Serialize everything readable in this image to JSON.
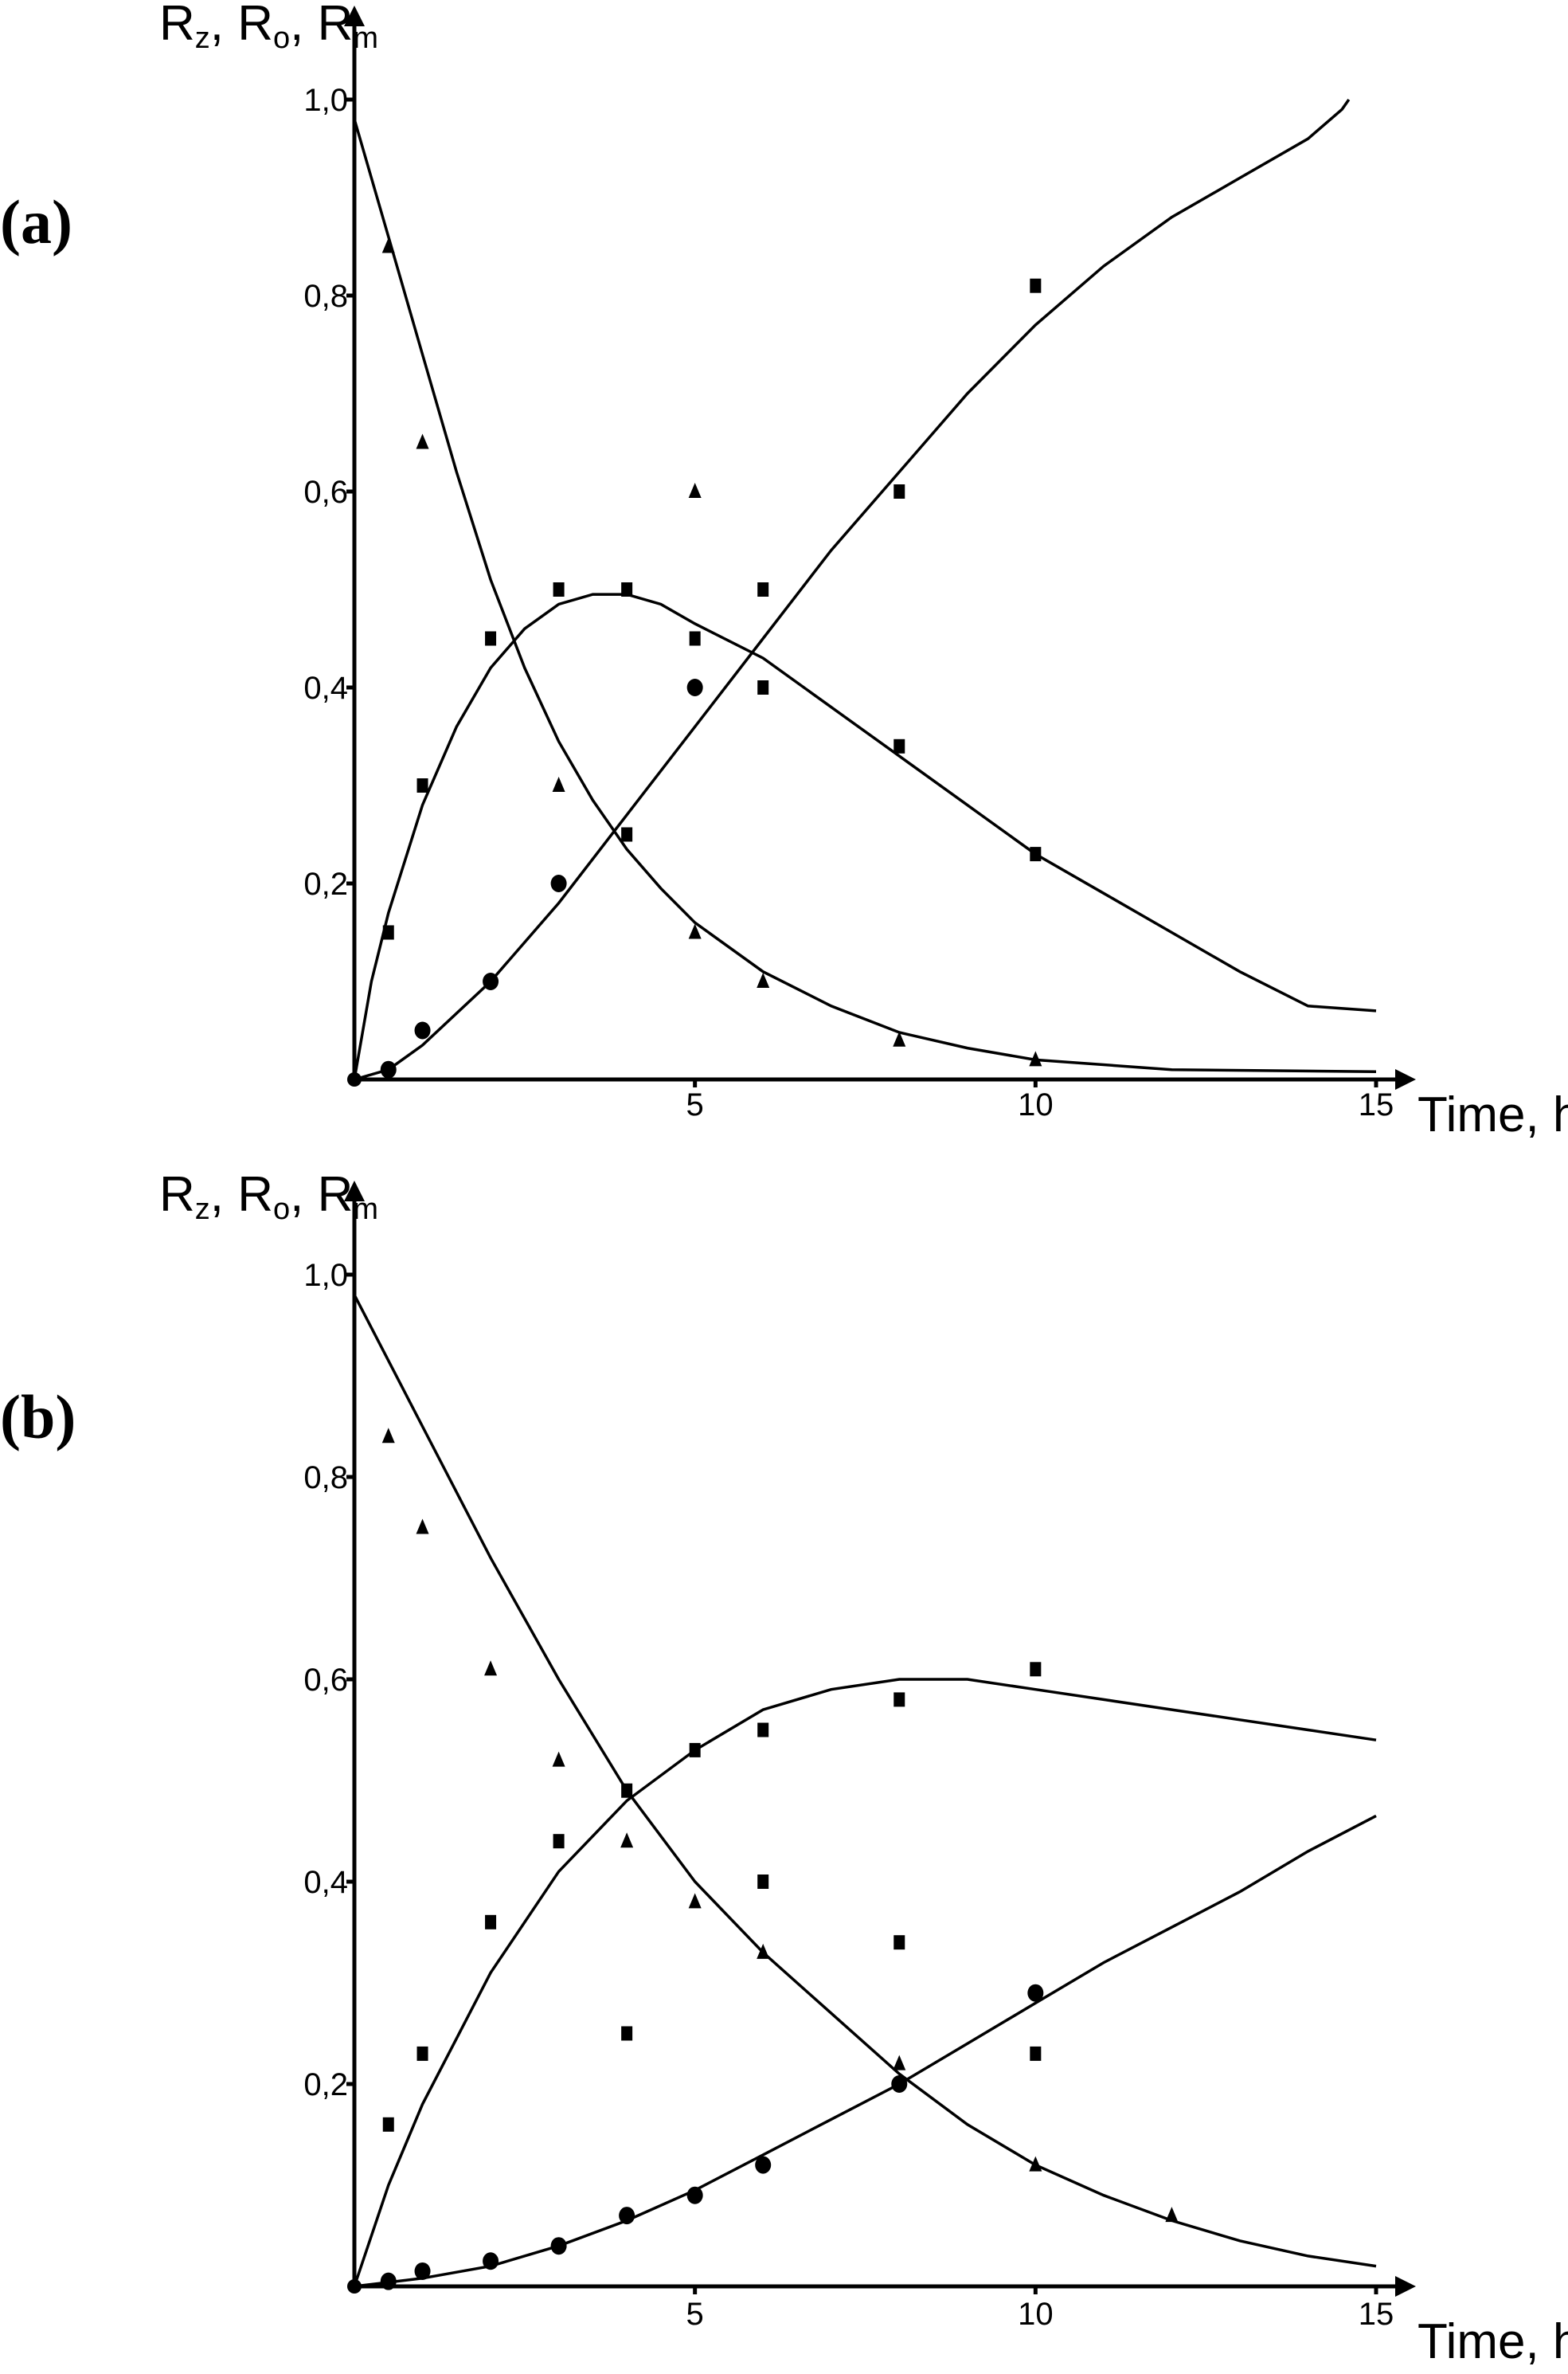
{
  "chart_data": [
    {
      "panel": "(a)",
      "type": "scatter",
      "y_axis_title": {
        "parts": [
          [
            "R",
            "z"
          ],
          [
            "R",
            "o"
          ],
          [
            "R",
            "m"
          ]
        ],
        "separator": ", "
      },
      "x_axis_title": "Time, h",
      "xlim": [
        0,
        15
      ],
      "ylim": [
        0,
        1.0
      ],
      "x_ticks": [
        5,
        10,
        15
      ],
      "y_ticks": [
        {
          "value": 0.2,
          "label": "0,2"
        },
        {
          "value": 0.4,
          "label": "0,4"
        },
        {
          "value": 0.6,
          "label": "0,6"
        },
        {
          "value": 0.8,
          "label": "0,8"
        },
        {
          "value": 1.0,
          "label": "1,0"
        }
      ],
      "grid": false,
      "series": [
        {
          "marker": "triangle",
          "points": [
            [
              0.5,
              0.85
            ],
            [
              1,
              0.65
            ],
            [
              3,
              0.3
            ],
            [
              5,
              0.6
            ],
            [
              5,
              0.15
            ],
            [
              6,
              0.1
            ],
            [
              8,
              0.04
            ],
            [
              10,
              0.02
            ]
          ],
          "fit": [
            [
              0,
              0.98
            ],
            [
              0.5,
              0.86
            ],
            [
              1,
              0.74
            ],
            [
              1.5,
              0.62
            ],
            [
              2,
              0.51
            ],
            [
              2.5,
              0.42
            ],
            [
              3,
              0.345
            ],
            [
              3.5,
              0.285
            ],
            [
              4,
              0.235
            ],
            [
              4.5,
              0.195
            ],
            [
              5,
              0.16
            ],
            [
              6,
              0.11
            ],
            [
              7,
              0.075
            ],
            [
              8,
              0.048
            ],
            [
              9,
              0.032
            ],
            [
              10,
              0.02
            ],
            [
              12,
              0.01
            ],
            [
              15,
              0.008
            ]
          ]
        },
        {
          "marker": "square",
          "points": [
            [
              0.5,
              0.15
            ],
            [
              1,
              0.3
            ],
            [
              2,
              0.45
            ],
            [
              3,
              0.5
            ],
            [
              4,
              0.5
            ],
            [
              5,
              0.45
            ],
            [
              6,
              0.5
            ],
            [
              6,
              0.4
            ],
            [
              8,
              0.34
            ],
            [
              10,
              0.23
            ],
            [
              4,
              0.25
            ],
            [
              8,
              0.6
            ],
            [
              10,
              0.81
            ]
          ],
          "fit": [
            [
              0,
              0.0
            ],
            [
              0.25,
              0.1
            ],
            [
              0.5,
              0.17
            ],
            [
              1,
              0.28
            ],
            [
              1.5,
              0.36
            ],
            [
              2,
              0.42
            ],
            [
              2.5,
              0.46
            ],
            [
              3,
              0.485
            ],
            [
              3.5,
              0.495
            ],
            [
              4,
              0.495
            ],
            [
              4.5,
              0.485
            ],
            [
              5,
              0.465
            ],
            [
              6,
              0.43
            ],
            [
              7,
              0.38
            ],
            [
              8,
              0.33
            ],
            [
              9,
              0.28
            ],
            [
              10,
              0.23
            ],
            [
              11,
              0.19
            ],
            [
              12,
              0.15
            ],
            [
              13,
              0.11
            ],
            [
              14,
              0.075
            ],
            [
              15,
              0.07
            ]
          ]
        },
        {
          "marker": "circle",
          "points": [
            [
              0.5,
              0.01
            ],
            [
              1,
              0.05
            ],
            [
              2,
              0.1
            ],
            [
              3,
              0.2
            ],
            [
              5,
              0.4
            ]
          ],
          "fit": [
            [
              0,
              0.0
            ],
            [
              0.5,
              0.01
            ],
            [
              1,
              0.035
            ],
            [
              2,
              0.1
            ],
            [
              3,
              0.18
            ],
            [
              4,
              0.27
            ],
            [
              5,
              0.36
            ],
            [
              6,
              0.45
            ],
            [
              7,
              0.54
            ],
            [
              8,
              0.62
            ],
            [
              9,
              0.7
            ],
            [
              10,
              0.77
            ],
            [
              11,
              0.83
            ],
            [
              12,
              0.88
            ],
            [
              13,
              0.92
            ],
            [
              14,
              0.96
            ],
            [
              14.5,
              0.99
            ],
            [
              14.6,
              1.0
            ]
          ]
        }
      ]
    },
    {
      "panel": "(b)",
      "type": "scatter",
      "y_axis_title": {
        "parts": [
          [
            "R",
            "z"
          ],
          [
            "R",
            "o"
          ],
          [
            "R",
            "m"
          ]
        ],
        "separator": ", "
      },
      "x_axis_title": "Time, h",
      "xlim": [
        0,
        15
      ],
      "ylim": [
        0,
        1.0
      ],
      "x_ticks": [
        5,
        10,
        15
      ],
      "y_ticks": [
        {
          "value": 0.2,
          "label": "0,2"
        },
        {
          "value": 0.4,
          "label": "0,4"
        },
        {
          "value": 0.6,
          "label": "0,6"
        },
        {
          "value": 0.8,
          "label": "0,8"
        },
        {
          "value": 1.0,
          "label": "1,0"
        }
      ],
      "grid": false,
      "series": [
        {
          "marker": "triangle",
          "points": [
            [
              0.5,
              0.84
            ],
            [
              1,
              0.75
            ],
            [
              2,
              0.61
            ],
            [
              3,
              0.52
            ],
            [
              4,
              0.44
            ],
            [
              5,
              0.38
            ],
            [
              6,
              0.33
            ],
            [
              8,
              0.22
            ],
            [
              10,
              0.12
            ],
            [
              12,
              0.07
            ]
          ],
          "fit": [
            [
              0,
              0.98
            ],
            [
              1,
              0.85
            ],
            [
              2,
              0.72
            ],
            [
              3,
              0.6
            ],
            [
              4,
              0.49
            ],
            [
              5,
              0.4
            ],
            [
              6,
              0.33
            ],
            [
              7,
              0.27
            ],
            [
              8,
              0.21
            ],
            [
              9,
              0.16
            ],
            [
              10,
              0.12
            ],
            [
              11,
              0.09
            ],
            [
              12,
              0.065
            ],
            [
              13,
              0.045
            ],
            [
              14,
              0.03
            ],
            [
              15,
              0.02
            ]
          ]
        },
        {
          "marker": "square",
          "points": [
            [
              0.5,
              0.16
            ],
            [
              1,
              0.23
            ],
            [
              2,
              0.36
            ],
            [
              3,
              0.44
            ],
            [
              4,
              0.49
            ],
            [
              5,
              0.53
            ],
            [
              6,
              0.55
            ],
            [
              8,
              0.58
            ],
            [
              10,
              0.61
            ],
            [
              4,
              0.25
            ],
            [
              6,
              0.4
            ],
            [
              8,
              0.34
            ],
            [
              10,
              0.23
            ]
          ],
          "fit": [
            [
              0,
              0.0
            ],
            [
              0.5,
              0.1
            ],
            [
              1,
              0.18
            ],
            [
              2,
              0.31
            ],
            [
              3,
              0.41
            ],
            [
              4,
              0.48
            ],
            [
              5,
              0.53
            ],
            [
              6,
              0.57
            ],
            [
              7,
              0.59
            ],
            [
              8,
              0.6
            ],
            [
              9,
              0.6
            ],
            [
              10,
              0.59
            ],
            [
              11,
              0.58
            ],
            [
              12,
              0.57
            ],
            [
              13,
              0.56
            ],
            [
              14,
              0.55
            ],
            [
              15,
              0.54
            ]
          ]
        },
        {
          "marker": "circle",
          "points": [
            [
              0.5,
              0.005
            ],
            [
              1,
              0.015
            ],
            [
              2,
              0.025
            ],
            [
              3,
              0.04
            ],
            [
              4,
              0.07
            ],
            [
              5,
              0.09
            ],
            [
              6,
              0.12
            ],
            [
              8,
              0.2
            ],
            [
              10,
              0.29
            ]
          ],
          "fit": [
            [
              0,
              0.0
            ],
            [
              1,
              0.008
            ],
            [
              2,
              0.02
            ],
            [
              3,
              0.04
            ],
            [
              4,
              0.065
            ],
            [
              5,
              0.095
            ],
            [
              6,
              0.13
            ],
            [
              7,
              0.165
            ],
            [
              8,
              0.2
            ],
            [
              9,
              0.24
            ],
            [
              10,
              0.28
            ],
            [
              11,
              0.32
            ],
            [
              12,
              0.355
            ],
            [
              13,
              0.39
            ],
            [
              14,
              0.43
            ],
            [
              15,
              0.465
            ]
          ]
        }
      ]
    }
  ]
}
